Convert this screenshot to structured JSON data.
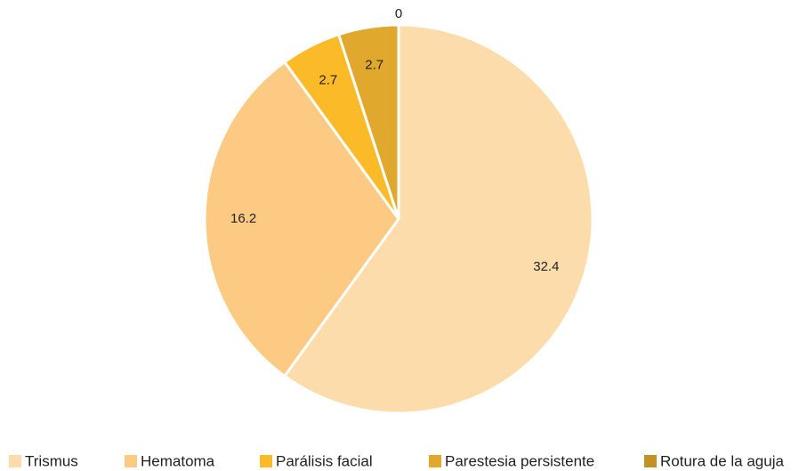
{
  "chart_data": {
    "type": "pie",
    "categories": [
      "Trismus",
      "Hematoma",
      "Parálisis facial",
      "Parestesia persistente",
      "Rotura de la aguja"
    ],
    "values": [
      32.4,
      16.2,
      2.7,
      2.7,
      0
    ],
    "colors": [
      "#fcdcab",
      "#fdca83",
      "#fbbb28",
      "#e0a92e",
      "#c29227"
    ],
    "legend": "bottom"
  }
}
